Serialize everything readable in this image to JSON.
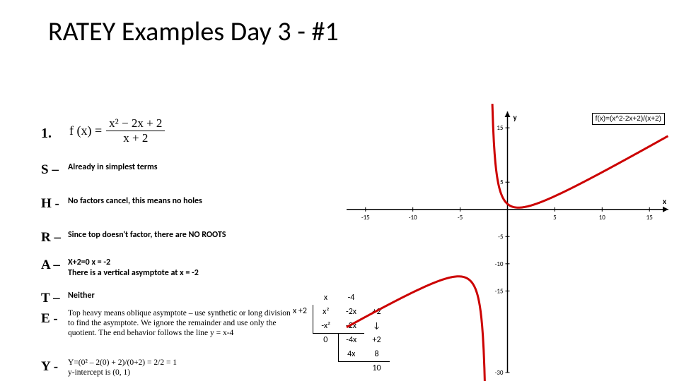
{
  "title": "RATEY Examples Day 3 - #1",
  "problem_number": "1.",
  "formula": {
    "lhs": "f (x) =",
    "numerator": "x² − 2x + 2",
    "denominator": "x + 2"
  },
  "rows": {
    "S": {
      "key": "S –",
      "text": "Already in simplest terms"
    },
    "H": {
      "key": "H -",
      "text": "No factors cancel, this means no holes"
    },
    "R": {
      "key": "R –",
      "text": "Since top doesn't factor, there are NO ROOTS"
    },
    "A": {
      "key": "A –",
      "text": "X+2=0          x = -2\nThere is a vertical asymptote at x = -2"
    },
    "T": {
      "key": "T –",
      "text": "Neither"
    },
    "E": {
      "key": "E -",
      "text": "Top heavy means oblique asymptote – use synthetic or long division to find the asymptote. We ignore the remainder and use only the quotient. The end behavior follows the line y = x-4"
    },
    "Y": {
      "key": "Y -",
      "text": "Y=(0² – 2(0) + 2)/(0+2) = 2/2 = 1\ny-intercept is (0, 1)"
    }
  },
  "synthetic": {
    "divisor": "x  +2",
    "headers": [
      "x",
      "-4",
      ""
    ],
    "r1": [
      "x²",
      "-2x",
      "+2"
    ],
    "r2": [
      "-x²",
      "-2x",
      "↓"
    ],
    "r3": [
      "0",
      "-4x",
      "+2"
    ],
    "r4": [
      "",
      "4x",
      "8"
    ],
    "r5": [
      "",
      "",
      "10"
    ]
  },
  "graph": {
    "xmin": -17,
    "xmax": 17,
    "ymin": -30,
    "ymax": 18,
    "xticks": [
      -15,
      -10,
      -5,
      5,
      10,
      15
    ],
    "yticks": [
      -30,
      -15,
      -10,
      -5,
      5,
      15
    ],
    "curve_color": "#cc0000",
    "axis_color": "#000000",
    "vertical_asymptote": -2,
    "legend": "f(x)=(x^2-2x+2)/(x+2)"
  }
}
